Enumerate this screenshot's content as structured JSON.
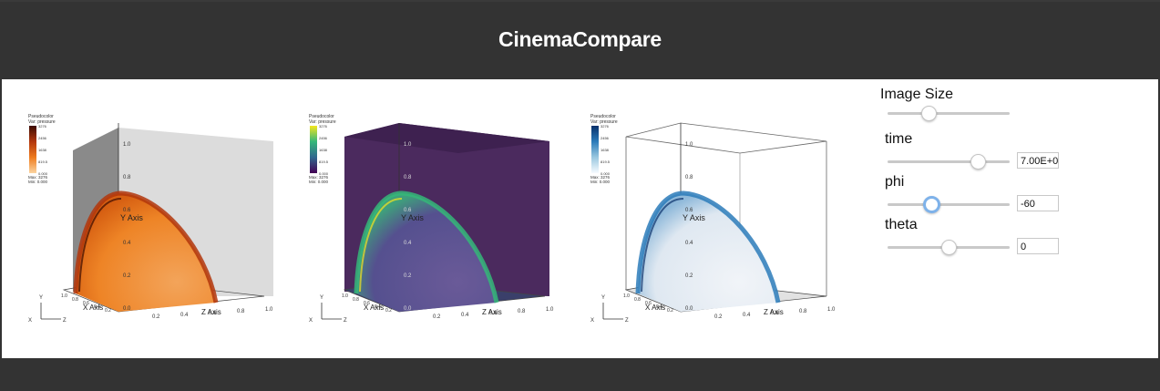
{
  "header": {
    "title": "CinemaCompare"
  },
  "viewers": [
    {
      "legend_title": "Pseudocolor",
      "legend_var": "Var: pressure",
      "legend_ticks": [
        "3276",
        "2456",
        "1638",
        "819.5",
        "0.000"
      ],
      "legend_max": "Max: 3276",
      "legend_min": "Min: 0.000",
      "axis_y": "Y Axis",
      "axis_x": "X Axis",
      "axis_z": "Z Axis",
      "yticks": [
        "1.0",
        "0.8",
        "0.6",
        "0.4",
        "0.2",
        "0.0"
      ],
      "zticks": [
        "0.2",
        "0.4",
        "0.6",
        "0.8",
        "1.0"
      ],
      "xticks": [
        "1.0",
        "0.8",
        "0.6",
        "0.4",
        "0.2"
      ],
      "triad": {
        "y": "Y",
        "x": "X",
        "z": "Z"
      },
      "colormap": "orange",
      "colors": [
        "#3b0a00",
        "#b2360c",
        "#ee7b1d",
        "#fbd4a0"
      ]
    },
    {
      "legend_title": "Pseudocolor",
      "legend_var": "Var: pressure",
      "legend_ticks": [
        "3276",
        "2456",
        "1638",
        "819.5",
        "0.000"
      ],
      "legend_max": "Max: 3276",
      "legend_min": "Min: 0.000",
      "axis_y": "Y Axis",
      "axis_x": "X Axis",
      "axis_z": "Z Axis",
      "yticks": [
        "1.0",
        "0.8",
        "0.6",
        "0.4",
        "0.2",
        "0.0"
      ],
      "zticks": [
        "0.2",
        "0.4",
        "0.6",
        "0.8",
        "1.0"
      ],
      "xticks": [
        "1.0",
        "0.8",
        "0.6",
        "0.4",
        "0.2"
      ],
      "triad": {
        "y": "Y",
        "x": "X",
        "z": "Z"
      },
      "colormap": "viridis",
      "colors": [
        "#f4e61f",
        "#35b779",
        "#31688e",
        "#440154"
      ]
    },
    {
      "legend_title": "Pseudocolor",
      "legend_var": "Var: pressure",
      "legend_ticks": [
        "3276",
        "2456",
        "1638",
        "819.5",
        "0.000"
      ],
      "legend_max": "Max: 3276",
      "legend_min": "Min: 0.000",
      "axis_y": "Y Axis",
      "axis_x": "X Axis",
      "axis_z": "Z Axis",
      "yticks": [
        "1.0",
        "0.8",
        "0.6",
        "0.4",
        "0.2",
        "0.0"
      ],
      "zticks": [
        "0.2",
        "0.4",
        "0.6",
        "0.8",
        "1.0"
      ],
      "xticks": [
        "1.0",
        "0.8",
        "0.6",
        "0.4",
        "0.2"
      ],
      "triad": {
        "y": "Y",
        "x": "X",
        "z": "Z"
      },
      "colormap": "blues",
      "colors": [
        "#08306b",
        "#2b7bba",
        "#9ac8e0",
        "#f7fbff"
      ]
    }
  ],
  "controls": {
    "image_size": {
      "label": "Image Size",
      "level": 0.34
    },
    "time": {
      "label": "time",
      "value": "7.00E+0",
      "level": 0.74
    },
    "phi": {
      "label": "phi",
      "value": "-60",
      "level": 0.36
    },
    "theta": {
      "label": "theta",
      "value": "0",
      "level": 0.5
    }
  }
}
